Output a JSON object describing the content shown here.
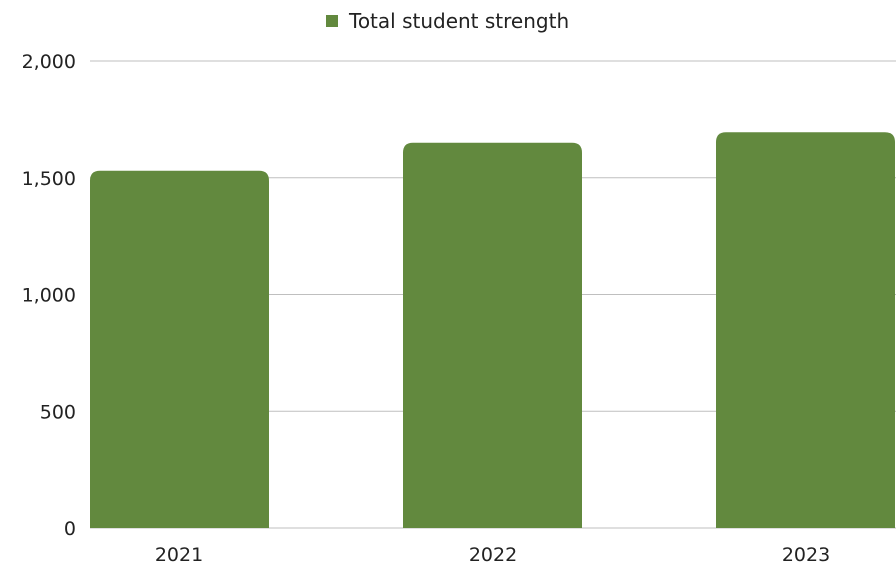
{
  "chart_data": {
    "type": "bar",
    "categories": [
      "2021",
      "2022",
      "2023"
    ],
    "series": [
      {
        "name": "Total student strength",
        "color": "#62893e",
        "values": [
          1530,
          1650,
          1695
        ]
      }
    ],
    "ylim": [
      0,
      2000
    ],
    "yticks": [
      0,
      500,
      1000,
      1500,
      2000
    ],
    "ytick_labels": [
      "0",
      "500",
      "1,000",
      "1,500",
      "2,000"
    ],
    "grid": true,
    "grid_color": "#bfbfbf",
    "legend_position": "top-center",
    "title": "",
    "xlabel": "",
    "ylabel": ""
  }
}
